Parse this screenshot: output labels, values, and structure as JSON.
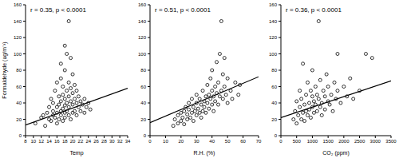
{
  "chart_data": [
    {
      "type": "scatter",
      "annotation": "r = 0.35, p < 0.0001",
      "xlabel": "Temp",
      "ylabel": "Formaldehyde (ug/m⁻³)",
      "color": "#000000",
      "marker": "open circle",
      "grid": false,
      "xlim": [
        8,
        34
      ],
      "xticks": [
        8,
        10,
        12,
        14,
        16,
        18,
        20,
        22,
        24,
        26,
        28,
        30,
        32,
        34
      ],
      "ylim": [
        0,
        160
      ],
      "yticks": [
        0,
        20,
        40,
        60,
        80,
        100,
        120,
        140,
        160
      ],
      "x": [
        10.5,
        12,
        12.5,
        13,
        13.5,
        14,
        14,
        14.5,
        14.5,
        15,
        15,
        15,
        15.5,
        15.5,
        16,
        16,
        16,
        16,
        16.5,
        16.5,
        16.5,
        17,
        17,
        17,
        17,
        17,
        17.5,
        17.5,
        17.5,
        17.5,
        18,
        18,
        18,
        18,
        18,
        18,
        18.5,
        18.5,
        18.5,
        18.5,
        19,
        19,
        19,
        19,
        19,
        19.5,
        19.5,
        19.5,
        19.5,
        20,
        20,
        20,
        20,
        20.5,
        20.5,
        20.5,
        21,
        21,
        21,
        21.5,
        21.5,
        22,
        22,
        22.5,
        23,
        23,
        23.5,
        24,
        24.5
      ],
      "values": [
        15,
        22,
        25,
        12,
        28,
        20,
        35,
        18,
        45,
        25,
        30,
        40,
        22,
        55,
        15,
        28,
        35,
        65,
        20,
        38,
        48,
        25,
        30,
        42,
        70,
        88,
        18,
        33,
        50,
        60,
        22,
        28,
        37,
        45,
        80,
        110,
        30,
        40,
        55,
        100,
        25,
        35,
        48,
        65,
        140,
        20,
        42,
        58,
        95,
        28,
        38,
        52,
        75,
        30,
        45,
        62,
        25,
        40,
        55,
        35,
        48,
        30,
        42,
        38,
        28,
        45,
        35,
        40,
        32
      ],
      "trend": {
        "x": [
          8,
          34
        ],
        "values": [
          13,
          58
        ]
      }
    },
    {
      "type": "scatter",
      "annotation": "r = 0.51, p < 0.0001",
      "xlabel": "R.H. (%)",
      "color": "#000000",
      "marker": "open circle",
      "grid": false,
      "xlim": [
        0,
        70
      ],
      "xticks": [
        0,
        10,
        20,
        30,
        40,
        50,
        60,
        70
      ],
      "ylim": [
        0,
        160
      ],
      "yticks": [
        0,
        20,
        40,
        60,
        80,
        100,
        120,
        140,
        160
      ],
      "x": [
        15,
        16,
        18,
        18,
        20,
        20,
        21,
        22,
        22,
        23,
        24,
        24,
        25,
        25,
        26,
        27,
        27,
        28,
        28,
        29,
        30,
        30,
        30,
        31,
        32,
        32,
        33,
        33,
        34,
        34,
        35,
        35,
        36,
        36,
        37,
        37,
        38,
        38,
        39,
        39,
        40,
        40,
        40,
        41,
        41,
        42,
        42,
        43,
        43,
        44,
        44,
        45,
        45,
        46,
        46,
        47,
        47,
        48,
        48,
        49,
        50,
        50,
        52,
        53,
        55,
        57,
        58
      ],
      "values": [
        12,
        20,
        15,
        25,
        18,
        28,
        22,
        30,
        14,
        35,
        20,
        26,
        32,
        40,
        22,
        28,
        45,
        18,
        35,
        30,
        25,
        40,
        50,
        33,
        28,
        45,
        38,
        22,
        55,
        30,
        42,
        35,
        28,
        48,
        40,
        62,
        33,
        50,
        45,
        70,
        38,
        55,
        80,
        30,
        48,
        60,
        42,
        52,
        90,
        38,
        65,
        48,
        100,
        55,
        140,
        45,
        75,
        60,
        95,
        50,
        70,
        40,
        55,
        45,
        65,
        50,
        62
      ],
      "trend": {
        "x": [
          0,
          70
        ],
        "values": [
          16,
          72
        ]
      }
    },
    {
      "type": "scatter",
      "annotation": "r = 0.36, p < 0.0001",
      "xlabel": "CO₂ (ppm)",
      "color": "#000000",
      "marker": "open circle",
      "grid": false,
      "xlim": [
        0,
        3500
      ],
      "xticks": [
        0,
        500,
        1000,
        1500,
        2000,
        2500,
        3000,
        3500
      ],
      "ylim": [
        0,
        160
      ],
      "yticks": [
        0,
        20,
        40,
        60,
        80,
        100,
        120,
        140,
        160
      ],
      "x": [
        400,
        450,
        500,
        500,
        550,
        600,
        600,
        650,
        650,
        700,
        700,
        750,
        750,
        800,
        800,
        850,
        850,
        900,
        900,
        950,
        950,
        1000,
        1000,
        1000,
        1050,
        1050,
        1100,
        1100,
        1150,
        1150,
        1200,
        1200,
        1250,
        1250,
        1300,
        1300,
        1350,
        1400,
        1400,
        1450,
        1500,
        1500,
        1550,
        1600,
        1650,
        1700,
        1750,
        1800,
        1800,
        1900,
        2000,
        2100,
        2200,
        2300,
        2500,
        2700,
        2900
      ],
      "values": [
        20,
        30,
        15,
        42,
        25,
        35,
        55,
        20,
        45,
        28,
        88,
        38,
        18,
        50,
        30,
        25,
        65,
        40,
        32,
        22,
        55,
        35,
        48,
        80,
        28,
        42,
        60,
        38,
        30,
        50,
        45,
        140,
        35,
        68,
        40,
        25,
        55,
        48,
        32,
        75,
        42,
        60,
        38,
        50,
        30,
        65,
        45,
        55,
        100,
        40,
        60,
        48,
        70,
        45,
        55,
        100,
        95
      ],
      "trend": {
        "x": [
          0,
          3500
        ],
        "values": [
          22,
          67
        ]
      }
    }
  ]
}
